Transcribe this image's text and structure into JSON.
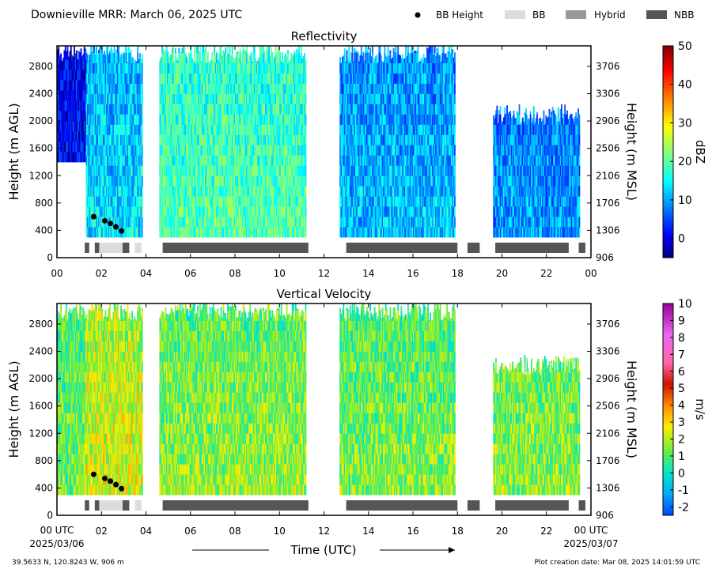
{
  "header": {
    "title": "Downieville MRR:  March 06, 2025 UTC",
    "legend": [
      {
        "label": "BB Height",
        "kind": "dot",
        "color": "#000000"
      },
      {
        "label": "BB",
        "kind": "rect",
        "color": "#dcdcdc"
      },
      {
        "label": "Hybrid",
        "kind": "rect",
        "color": "#999999"
      },
      {
        "label": "NBB",
        "kind": "rect",
        "color": "#555555"
      }
    ]
  },
  "footer": {
    "coords": "39.5633 N, 120.8243 W, 906 m",
    "created": "Plot creation date: Mar 08, 2025 14:01:59 UTC",
    "xlabel": "Time (UTC)",
    "start_label_1": "00 UTC",
    "start_label_2": "2025/03/06",
    "end_label_1": "00 UTC",
    "end_label_2": "2025/03/07"
  },
  "chart_data": [
    {
      "type": "heatmap",
      "title": "Reflectivity",
      "xlabel": "",
      "ylabel": "Height (m AGL)",
      "ylabel_right": "Height (m MSL)",
      "x_ticks": [
        "00",
        "02",
        "04",
        "06",
        "08",
        "10",
        "12",
        "14",
        "16",
        "18",
        "20",
        "22",
        "00"
      ],
      "xlim": [
        0,
        24
      ],
      "ylim": [
        0,
        3100
      ],
      "y_ticks": [
        0,
        400,
        800,
        1200,
        1600,
        2000,
        2400,
        2800
      ],
      "y_ticks_right": [
        906,
        1306,
        1706,
        2106,
        2506,
        2906,
        3306,
        3706
      ],
      "colorbar": {
        "label": "dBZ",
        "min": -5,
        "max": 50,
        "ticks": [
          0,
          10,
          20,
          30,
          40,
          50
        ],
        "cmap": "jet"
      },
      "echo_periods_utc": [
        {
          "start": 0.0,
          "end": 1.3,
          "bottom_m": 1400,
          "top_m": 3000,
          "value": 3
        },
        {
          "start": 1.3,
          "end": 3.8,
          "bottom_m": 300,
          "top_m": 3000,
          "value": 14
        },
        {
          "start": 4.6,
          "end": 11.2,
          "bottom_m": 300,
          "top_m": 3000,
          "value": 20
        },
        {
          "start": 12.7,
          "end": 17.9,
          "bottom_m": 300,
          "top_m": 3000,
          "value": 12
        },
        {
          "start": 19.6,
          "end": 23.5,
          "bottom_m": 300,
          "top_m": 2100,
          "value": 10
        }
      ],
      "bb_height_points": [
        {
          "time": 1.65,
          "height_m": 600
        },
        {
          "time": 2.15,
          "height_m": 540
        },
        {
          "time": 2.4,
          "height_m": 500
        },
        {
          "time": 2.65,
          "height_m": 450
        },
        {
          "time": 2.9,
          "height_m": 390
        }
      ],
      "precip_type_bars": [
        {
          "start": 1.25,
          "end": 1.45,
          "type": "NBB"
        },
        {
          "start": 1.7,
          "end": 1.9,
          "type": "NBB"
        },
        {
          "start": 1.9,
          "end": 2.95,
          "type": "BB"
        },
        {
          "start": 2.95,
          "end": 3.25,
          "type": "NBB"
        },
        {
          "start": 3.5,
          "end": 3.8,
          "type": "BB"
        },
        {
          "start": 4.75,
          "end": 11.3,
          "type": "NBB"
        },
        {
          "start": 13.0,
          "end": 18.0,
          "type": "NBB"
        },
        {
          "start": 18.45,
          "end": 19.0,
          "type": "NBB"
        },
        {
          "start": 19.7,
          "end": 23.0,
          "type": "NBB"
        },
        {
          "start": 23.45,
          "end": 23.75,
          "type": "NBB"
        }
      ]
    },
    {
      "type": "heatmap",
      "title": "Vertical Velocity",
      "xlabel": "Time (UTC)",
      "ylabel": "Height (m AGL)",
      "ylabel_right": "Height (m MSL)",
      "x_ticks": [
        "00 UTC",
        "02",
        "04",
        "06",
        "08",
        "10",
        "12",
        "14",
        "16",
        "18",
        "20",
        "22",
        "00 UTC"
      ],
      "xlim": [
        0,
        24
      ],
      "ylim": [
        0,
        3100
      ],
      "y_ticks": [
        0,
        400,
        800,
        1200,
        1600,
        2000,
        2400,
        2800
      ],
      "y_ticks_right": [
        906,
        1306,
        1706,
        2106,
        2506,
        2906,
        3306,
        3706
      ],
      "colorbar": {
        "label": "m/s",
        "min": -2.5,
        "max": 10,
        "ticks": [
          -2,
          -1,
          0,
          1,
          2,
          3,
          4,
          5,
          6,
          7,
          8,
          9,
          10
        ]
      },
      "echo_periods_utc": [
        {
          "start": 0.0,
          "end": 1.3,
          "bottom_m": 300,
          "top_m": 3000,
          "value": 1.5
        },
        {
          "start": 1.3,
          "end": 3.8,
          "bottom_m": 300,
          "top_m": 3000,
          "value": 2.5
        },
        {
          "start": 4.6,
          "end": 11.2,
          "bottom_m": 300,
          "top_m": 3000,
          "value": 1.8
        },
        {
          "start": 12.7,
          "end": 17.9,
          "bottom_m": 300,
          "top_m": 3000,
          "value": 1.6
        },
        {
          "start": 19.6,
          "end": 23.5,
          "bottom_m": 300,
          "top_m": 2200,
          "value": 1.7
        }
      ],
      "bb_height_points": [
        {
          "time": 1.65,
          "height_m": 600
        },
        {
          "time": 2.15,
          "height_m": 540
        },
        {
          "time": 2.4,
          "height_m": 500
        },
        {
          "time": 2.65,
          "height_m": 450
        },
        {
          "time": 2.9,
          "height_m": 390
        }
      ],
      "precip_type_bars": [
        {
          "start": 1.25,
          "end": 1.45,
          "type": "NBB"
        },
        {
          "start": 1.7,
          "end": 1.9,
          "type": "NBB"
        },
        {
          "start": 1.9,
          "end": 2.95,
          "type": "BB"
        },
        {
          "start": 2.95,
          "end": 3.25,
          "type": "NBB"
        },
        {
          "start": 3.5,
          "end": 3.8,
          "type": "BB"
        },
        {
          "start": 4.75,
          "end": 11.3,
          "type": "NBB"
        },
        {
          "start": 13.0,
          "end": 18.0,
          "type": "NBB"
        },
        {
          "start": 18.45,
          "end": 19.0,
          "type": "NBB"
        },
        {
          "start": 19.7,
          "end": 23.0,
          "type": "NBB"
        },
        {
          "start": 23.45,
          "end": 23.75,
          "type": "NBB"
        }
      ]
    }
  ]
}
